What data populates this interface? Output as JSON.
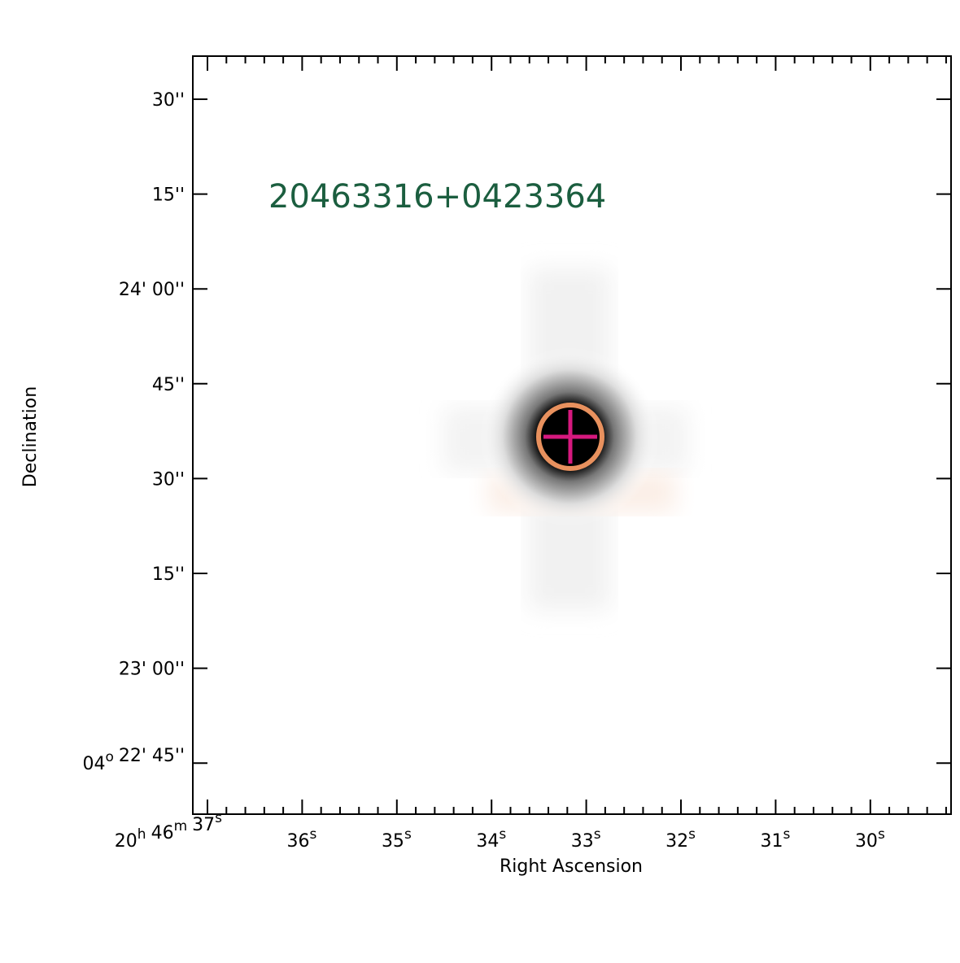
{
  "chart_data": {
    "type": "image",
    "title": "20463316+0423364",
    "xlabel": "Right Ascension",
    "ylabel": "Declination",
    "xticks": [
      [
        {
          "text": "20",
          "sup": "h"
        },
        {
          "text": "46",
          "sup": "m"
        },
        {
          "text": "37",
          "sup": "s"
        }
      ],
      [
        {
          "text": "36",
          "sup": "s"
        }
      ],
      [
        {
          "text": "35",
          "sup": "s"
        }
      ],
      [
        {
          "text": "34",
          "sup": "s"
        }
      ],
      [
        {
          "text": "33",
          "sup": "s"
        }
      ],
      [
        {
          "text": "32",
          "sup": "s"
        }
      ],
      [
        {
          "text": "31",
          "sup": "s"
        }
      ],
      [
        {
          "text": "30",
          "sup": "s"
        }
      ]
    ],
    "yticks": [
      [
        {
          "text": "30''"
        }
      ],
      [
        {
          "text": "15''"
        }
      ],
      [
        {
          "text": "24' 00''"
        }
      ],
      [
        {
          "text": "45''"
        }
      ],
      [
        {
          "text": "30''"
        }
      ],
      [
        {
          "text": "15''"
        }
      ],
      [
        {
          "text": "23' 00''"
        }
      ],
      [
        {
          "text": "04",
          "sup": "o"
        },
        {
          "text": "22' 45''"
        }
      ]
    ],
    "title_color": "#1b5e3f",
    "circle_color": "#e8915e",
    "cross_color": "#d6197e"
  }
}
